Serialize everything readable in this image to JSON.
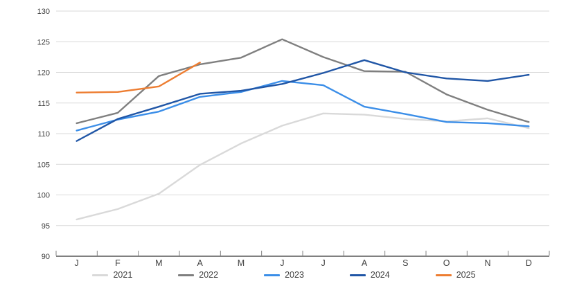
{
  "chart_data": {
    "type": "line",
    "categories": [
      "J",
      "F",
      "M",
      "A",
      "M",
      "J",
      "J",
      "A",
      "S",
      "O",
      "N",
      "D"
    ],
    "series": [
      {
        "name": "2021",
        "color": "#D9D9D9",
        "values": [
          96.0,
          97.7,
          100.2,
          104.9,
          108.4,
          111.3,
          113.3,
          113.1,
          112.4,
          112.0,
          112.5,
          110.9
        ]
      },
      {
        "name": "2022",
        "color": "#7F7F7F",
        "values": [
          111.7,
          113.4,
          119.4,
          121.3,
          122.4,
          125.4,
          122.5,
          120.2,
          120.1,
          116.4,
          113.9,
          111.9
        ]
      },
      {
        "name": "2023",
        "color": "#3B8EE8",
        "values": [
          110.5,
          112.3,
          113.6,
          116.0,
          116.8,
          118.6,
          117.9,
          114.4,
          113.2,
          111.9,
          111.7,
          111.2
        ]
      },
      {
        "name": "2024",
        "color": "#2056A6",
        "values": [
          108.8,
          112.4,
          114.4,
          116.5,
          117.0,
          118.1,
          119.9,
          122.0,
          120.0,
          119.0,
          118.6,
          119.6
        ]
      },
      {
        "name": "2025",
        "color": "#ED7D31",
        "values": [
          116.7,
          116.8,
          117.7,
          121.6
        ]
      }
    ],
    "ylim": [
      90,
      130
    ],
    "yticks": [
      90,
      95,
      100,
      105,
      110,
      115,
      120,
      125,
      130
    ],
    "grid": true,
    "legend_position": "bottom",
    "grid_color": "#D9D9D9",
    "axis_color": "#808080",
    "text_color": "#404040"
  }
}
